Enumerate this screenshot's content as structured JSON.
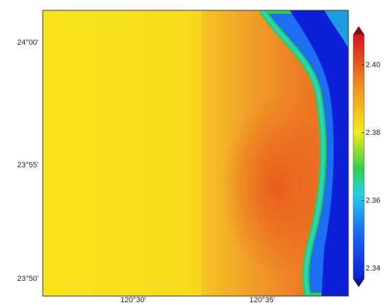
{
  "map": {
    "lat_labels": [
      "24°00'",
      "23°55'",
      "23°50'"
    ],
    "lon_labels": [
      "120°30'",
      "120°35'"
    ],
    "colorbar": {
      "range": [
        2.337,
        2.409
      ],
      "ticks": [
        {
          "value": 2.34,
          "label": "2.34"
        },
        {
          "value": 2.36,
          "label": "2.36"
        },
        {
          "value": 2.38,
          "label": "2.38"
        },
        {
          "value": 2.4,
          "label": "2.40"
        }
      ]
    }
  }
}
